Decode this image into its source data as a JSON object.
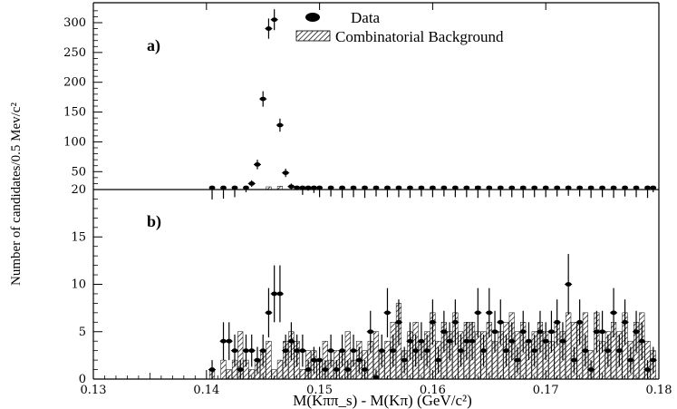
{
  "chart_data": {
    "type": "scatter",
    "xlabel": "M(Kππ_s) - M(Kπ) (GeV/c²)",
    "ylabel": "Number of candidates/0.5 Mev/c²",
    "xlim": [
      0.13,
      0.18
    ],
    "x_ticks": [
      "0.13",
      "0.14",
      "0.15",
      "0.16",
      "0.17",
      "0.18"
    ],
    "legend": {
      "placement": "top-right",
      "entries": [
        {
          "label": "Data",
          "style": "filled-ellipse"
        },
        {
          "label": "Combinatorial Background",
          "style": "hatched-box"
        }
      ]
    },
    "panels": [
      {
        "label": "a)",
        "ylim": [
          0,
          330
        ],
        "y_ticks": [
          "20",
          "50",
          "100",
          "150",
          "200",
          "250",
          "300"
        ],
        "series": [
          {
            "name": "Data",
            "x": [
              0.1405,
              0.1415,
              0.1425,
              0.1435,
              0.144,
              0.1445,
              0.145,
              0.1455,
              0.146,
              0.1465,
              0.147,
              0.1475,
              0.148,
              0.1485,
              0.149,
              0.1495,
              0.15,
              0.151,
              0.152,
              0.153,
              0.154,
              0.155,
              0.156,
              0.157,
              0.158,
              0.159,
              0.16,
              0.161,
              0.162,
              0.163,
              0.164,
              0.165,
              0.166,
              0.167,
              0.168,
              0.169,
              0.17,
              0.171,
              0.172,
              0.173,
              0.174,
              0.175,
              0.176,
              0.177,
              0.178,
              0.179,
              0.1795
            ],
            "y": [
              2,
              3,
              5,
              12,
              30,
              62,
              172,
              290,
              305,
              128,
              48,
              25,
              15,
              8,
              14,
              11,
              5,
              6,
              4,
              5,
              4,
              6,
              5,
              5,
              4,
              6,
              5,
              6,
              5,
              5,
              4,
              5,
              6,
              5,
              4,
              5,
              5,
              6,
              7,
              6,
              4,
              5,
              4,
              6,
              5,
              4,
              12
            ],
            "yerr": [
              1.4,
              1.7,
              2.2,
              3.5,
              5.5,
              8,
              13,
              17,
              17.5,
              11,
              7,
              5,
              4,
              3,
              4,
              3.3,
              2.2,
              2.4,
              2,
              2.2,
              2,
              2.4,
              2.2,
              2.2,
              2,
              2.4,
              2.2,
              2.4,
              2.2,
              2.2,
              2,
              2.2,
              2.4,
              2.2,
              2,
              2.2,
              2.2,
              2.4,
              2.6,
              2.4,
              2,
              2.2,
              2,
              2.4,
              2.2,
              2,
              3.5
            ]
          },
          {
            "name": "Combinatorial Background",
            "x": [
              0.1455,
              0.1465,
              0.149,
              0.152,
              0.156,
              0.16,
              0.164,
              0.168,
              0.172,
              0.176
            ],
            "y": [
              5,
              6,
              4,
              4,
              5,
              5,
              6,
              5,
              5,
              4
            ]
          }
        ]
      },
      {
        "label": "b)",
        "ylim": [
          0,
          20
        ],
        "y_ticks": [
          "0",
          "5",
          "10",
          "15"
        ],
        "series": [
          {
            "name": "Data",
            "x": [
              0.1405,
              0.1415,
              0.142,
              0.1425,
              0.143,
              0.1435,
              0.144,
              0.1445,
              0.145,
              0.1455,
              0.146,
              0.1465,
              0.147,
              0.1475,
              0.148,
              0.1485,
              0.149,
              0.1495,
              0.15,
              0.1505,
              0.151,
              0.1515,
              0.152,
              0.1525,
              0.153,
              0.1535,
              0.154,
              0.1545,
              0.155,
              0.1555,
              0.156,
              0.1565,
              0.157,
              0.1575,
              0.158,
              0.1585,
              0.159,
              0.1595,
              0.16,
              0.1605,
              0.161,
              0.1615,
              0.162,
              0.1625,
              0.163,
              0.1635,
              0.164,
              0.1645,
              0.165,
              0.1655,
              0.166,
              0.1665,
              0.167,
              0.1675,
              0.168,
              0.1685,
              0.169,
              0.1695,
              0.17,
              0.1705,
              0.171,
              0.1715,
              0.172,
              0.1725,
              0.173,
              0.1735,
              0.174,
              0.1745,
              0.175,
              0.1755,
              0.176,
              0.1765,
              0.177,
              0.1775,
              0.178,
              0.1785,
              0.179,
              0.1795
            ],
            "y": [
              1,
              4,
              4,
              3,
              1,
              3,
              3,
              2,
              3,
              7,
              9,
              9,
              3,
              4,
              3,
              3,
              1,
              2,
              2,
              1,
              3,
              1,
              3,
              1,
              3,
              2,
              1,
              5,
              0,
              3,
              7,
              3,
              6,
              2,
              4,
              3,
              4,
              3,
              6,
              2,
              5,
              4,
              6,
              3,
              4,
              4,
              7,
              3,
              7,
              5,
              6,
              3,
              4,
              2,
              5,
              4,
              3,
              5,
              4,
              5,
              6,
              4,
              10,
              2,
              6,
              3,
              1,
              5,
              5,
              3,
              7,
              3,
              6,
              2,
              5,
              4,
              1,
              2
            ],
            "yerr": [
              1,
              2,
              2,
              1.7,
              1,
              1.7,
              1.7,
              1.4,
              1.7,
              2.6,
              3,
              3,
              1.7,
              2,
              1.7,
              1.7,
              1,
              1.4,
              1.4,
              1,
              1.7,
              1,
              1.7,
              1,
              1.7,
              1.4,
              1,
              2.2,
              1,
              1.7,
              2.6,
              1.7,
              2.4,
              1.4,
              2,
              1.7,
              2,
              1.7,
              2.4,
              1.4,
              2.2,
              2,
              2.4,
              1.7,
              2,
              2,
              2.6,
              1.7,
              2.6,
              2.2,
              2.4,
              1.7,
              2,
              1.4,
              2.2,
              2,
              1.7,
              2.2,
              2,
              2.2,
              2.4,
              2,
              3.2,
              1.4,
              2.4,
              1.7,
              1,
              2.2,
              2.2,
              1.7,
              2.6,
              1.7,
              2.4,
              1.4,
              2.2,
              2,
              1,
              1.4
            ]
          },
          {
            "name": "Combinatorial Background",
            "x": [
              0.1405,
              0.1415,
              0.142,
              0.1425,
              0.143,
              0.1435,
              0.144,
              0.1445,
              0.145,
              0.1455,
              0.146,
              0.1465,
              0.147,
              0.1475,
              0.148,
              0.1485,
              0.149,
              0.1495,
              0.15,
              0.1505,
              0.151,
              0.1515,
              0.152,
              0.1525,
              0.153,
              0.1535,
              0.154,
              0.1545,
              0.155,
              0.1555,
              0.156,
              0.1565,
              0.157,
              0.1575,
              0.158,
              0.1585,
              0.159,
              0.1595,
              0.16,
              0.1605,
              0.161,
              0.1615,
              0.162,
              0.1625,
              0.163,
              0.1635,
              0.164,
              0.1645,
              0.165,
              0.1655,
              0.166,
              0.1665,
              0.167,
              0.1675,
              0.168,
              0.1685,
              0.169,
              0.1695,
              0.17,
              0.1705,
              0.171,
              0.1715,
              0.172,
              0.1725,
              0.173,
              0.1735,
              0.174,
              0.1745,
              0.175,
              0.1755,
              0.176,
              0.1765,
              0.177,
              0.1775,
              0.178,
              0.1785,
              0.179,
              0.1795
            ],
            "y": [
              1,
              2,
              1,
              2,
              5,
              2,
              1,
              2,
              3,
              4,
              1,
              2,
              4,
              5,
              4,
              1,
              3,
              3,
              2,
              4,
              2,
              3,
              3,
              5,
              2,
              4,
              3,
              4,
              5,
              3,
              4,
              6,
              8,
              3,
              5,
              6,
              4,
              5,
              7,
              4,
              6,
              5,
              7,
              5,
              6,
              6,
              5,
              5,
              6,
              4,
              5,
              6,
              7,
              5,
              6,
              4,
              5,
              6,
              5,
              4,
              6,
              5,
              7,
              6,
              6,
              7,
              3,
              7,
              4,
              5,
              6,
              5,
              7,
              4,
              6,
              7,
              4,
              3
            ]
          }
        ]
      }
    ]
  }
}
